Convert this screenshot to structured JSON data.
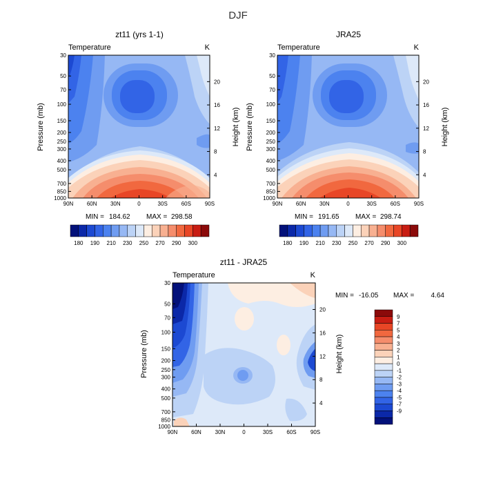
{
  "figure": {
    "title": "DJF"
  },
  "chart_data": [
    {
      "type": "heatmap",
      "id": "model",
      "title": "zt11 (yrs 1-1)",
      "variable": "Temperature",
      "units": "K",
      "ylabel": "Pressure (mb)",
      "y2label": "Height (km)",
      "x_ticks": [
        "90N",
        "60N",
        "30N",
        "0",
        "30S",
        "60S",
        "90S"
      ],
      "y_ticks": [
        "30",
        "50",
        "70",
        "100",
        "150",
        "200",
        "250",
        "300",
        "400",
        "500",
        "700",
        "850",
        "1000"
      ],
      "height_ticks": [
        "20",
        "16",
        "12",
        "8",
        "4"
      ],
      "min_label": "MIN =",
      "min_value": "184.62",
      "max_label": "MAX =",
      "max_value": "298.58",
      "colorbar_labels": [
        "180",
        "190",
        "210",
        "230",
        "250",
        "270",
        "290",
        "300"
      ]
    },
    {
      "type": "heatmap",
      "id": "reanalysis",
      "title": "JRA25",
      "variable": "Temperature",
      "units": "K",
      "ylabel": "Pressure (mb)",
      "y2label": "Height (km)",
      "x_ticks": [
        "90N",
        "60N",
        "30N",
        "0",
        "30S",
        "60S",
        "90S"
      ],
      "y_ticks": [
        "30",
        "50",
        "70",
        "100",
        "150",
        "200",
        "250",
        "300",
        "400",
        "500",
        "700",
        "850",
        "1000"
      ],
      "height_ticks": [
        "20",
        "16",
        "12",
        "8",
        "4"
      ],
      "min_label": "MIN =",
      "min_value": "191.65",
      "max_label": "MAX =",
      "max_value": "298.74",
      "colorbar_labels": [
        "180",
        "190",
        "210",
        "230",
        "250",
        "270",
        "290",
        "300"
      ]
    },
    {
      "type": "heatmap",
      "id": "difference",
      "title": "zt11 - JRA25",
      "variable": "Temperature",
      "units": "K",
      "ylabel": "Pressure (mb)",
      "y2label": "Height (km)",
      "x_ticks": [
        "90N",
        "60N",
        "30N",
        "0",
        "30S",
        "60S",
        "90S"
      ],
      "y_ticks": [
        "30",
        "50",
        "70",
        "100",
        "150",
        "200",
        "250",
        "300",
        "400",
        "500",
        "700",
        "850",
        "1000"
      ],
      "height_ticks": [
        "20",
        "16",
        "12",
        "8",
        "4"
      ],
      "min_label": "MIN =",
      "min_value": "-16.05",
      "max_label": "MAX =",
      "max_value": "4.64",
      "colorbar_labels": [
        "9",
        "7",
        "5",
        "4",
        "3",
        "2",
        "1",
        "0",
        "-1",
        "-2",
        "-3",
        "-4",
        "-5",
        "-7",
        "-9"
      ]
    }
  ],
  "colors": {
    "abs_scale": [
      "#03117a",
      "#0b28a8",
      "#1c49d2",
      "#3264e6",
      "#4c82ef",
      "#6f9cf1",
      "#96b8f4",
      "#bcd3f6",
      "#dde9f9",
      "#fdeee2",
      "#fbd2b9",
      "#f8b091",
      "#f58d6c",
      "#f1683f",
      "#e84626",
      "#c81d13",
      "#8b0a0a"
    ],
    "diff_scale": [
      "#8b0a0a",
      "#c81d13",
      "#e84626",
      "#f1683f",
      "#f58d6c",
      "#f8b091",
      "#fbd2b9",
      "#fdeee2",
      "#dde9f9",
      "#bcd3f6",
      "#96b8f4",
      "#6f9cf1",
      "#4c82ef",
      "#3264e6",
      "#1c49d2",
      "#0b28a8",
      "#03117a"
    ]
  }
}
